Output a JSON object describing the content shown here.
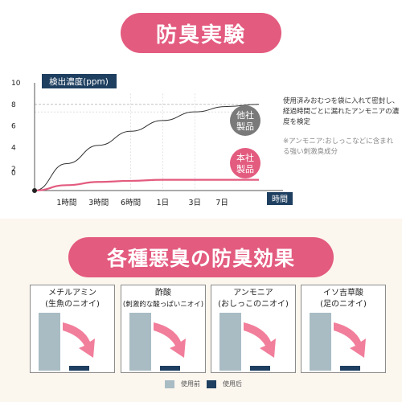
{
  "header": {
    "title": "防臭実験"
  },
  "chart_data": [
    {
      "type": "line",
      "title": "",
      "ylabel": "検出濃度(ppm)",
      "xlabel": "時間",
      "ylim": [
        0,
        10
      ],
      "y_ticks": [
        "10",
        "8",
        "6",
        "4",
        "2",
        "0"
      ],
      "y_tick_values": [
        10,
        8,
        6,
        4,
        2,
        0
      ],
      "x_tick_labels": [
        "1時間",
        "3時間",
        "6時間",
        "1日",
        "3日",
        "7日"
      ],
      "series": [
        {
          "name": "他社製品",
          "color": "#333333",
          "points": [
            [
              0,
              0
            ],
            [
              1,
              2.5
            ],
            [
              2,
              4.2
            ],
            [
              3,
              5.5
            ],
            [
              4,
              6.5
            ],
            [
              5,
              7.3
            ],
            [
              6,
              7.8
            ],
            [
              7,
              8.0
            ]
          ]
        },
        {
          "name": "本社製品",
          "color": "#e35b7f",
          "points": [
            [
              0,
              0
            ],
            [
              1,
              0.5
            ],
            [
              2,
              0.8
            ],
            [
              3,
              0.9
            ],
            [
              4,
              1.0
            ],
            [
              5,
              1.0
            ],
            [
              6,
              1.0
            ],
            [
              7,
              1.0
            ]
          ]
        }
      ]
    },
    {
      "type": "bar",
      "title": "各種悪臭の防臭効果",
      "legend": [
        "使用前",
        "使用后"
      ],
      "colors": {
        "before": "#a9bcc4",
        "after": "#1e3f60",
        "arrow": "#f07090"
      },
      "groups": [
        {
          "title": "メチルアミン",
          "subtitle": "(生魚のニオイ)",
          "before": 100,
          "after": 8
        },
        {
          "title": "酢酸",
          "subtitle": "(刺激的な酸っぱいニオイ)",
          "before": 100,
          "after": 8
        },
        {
          "title": "アンモニア",
          "subtitle": "(おしっこのニオイ)",
          "before": 100,
          "after": 8
        },
        {
          "title": "イソ吉草酸",
          "subtitle": "(足のニオイ)",
          "before": 100,
          "after": 8
        }
      ]
    }
  ],
  "notes": {
    "description": "使用済みおむつを袋に入れて密封し、経過時間ごとに漏れたアンモニアの濃度を検定",
    "footnote": "※アンモニア:おしっこなどに含まれる強い刺激臭成分"
  },
  "labels": {
    "competitor": [
      "他社",
      "製品"
    ],
    "ours": [
      "本社",
      "製品"
    ]
  }
}
